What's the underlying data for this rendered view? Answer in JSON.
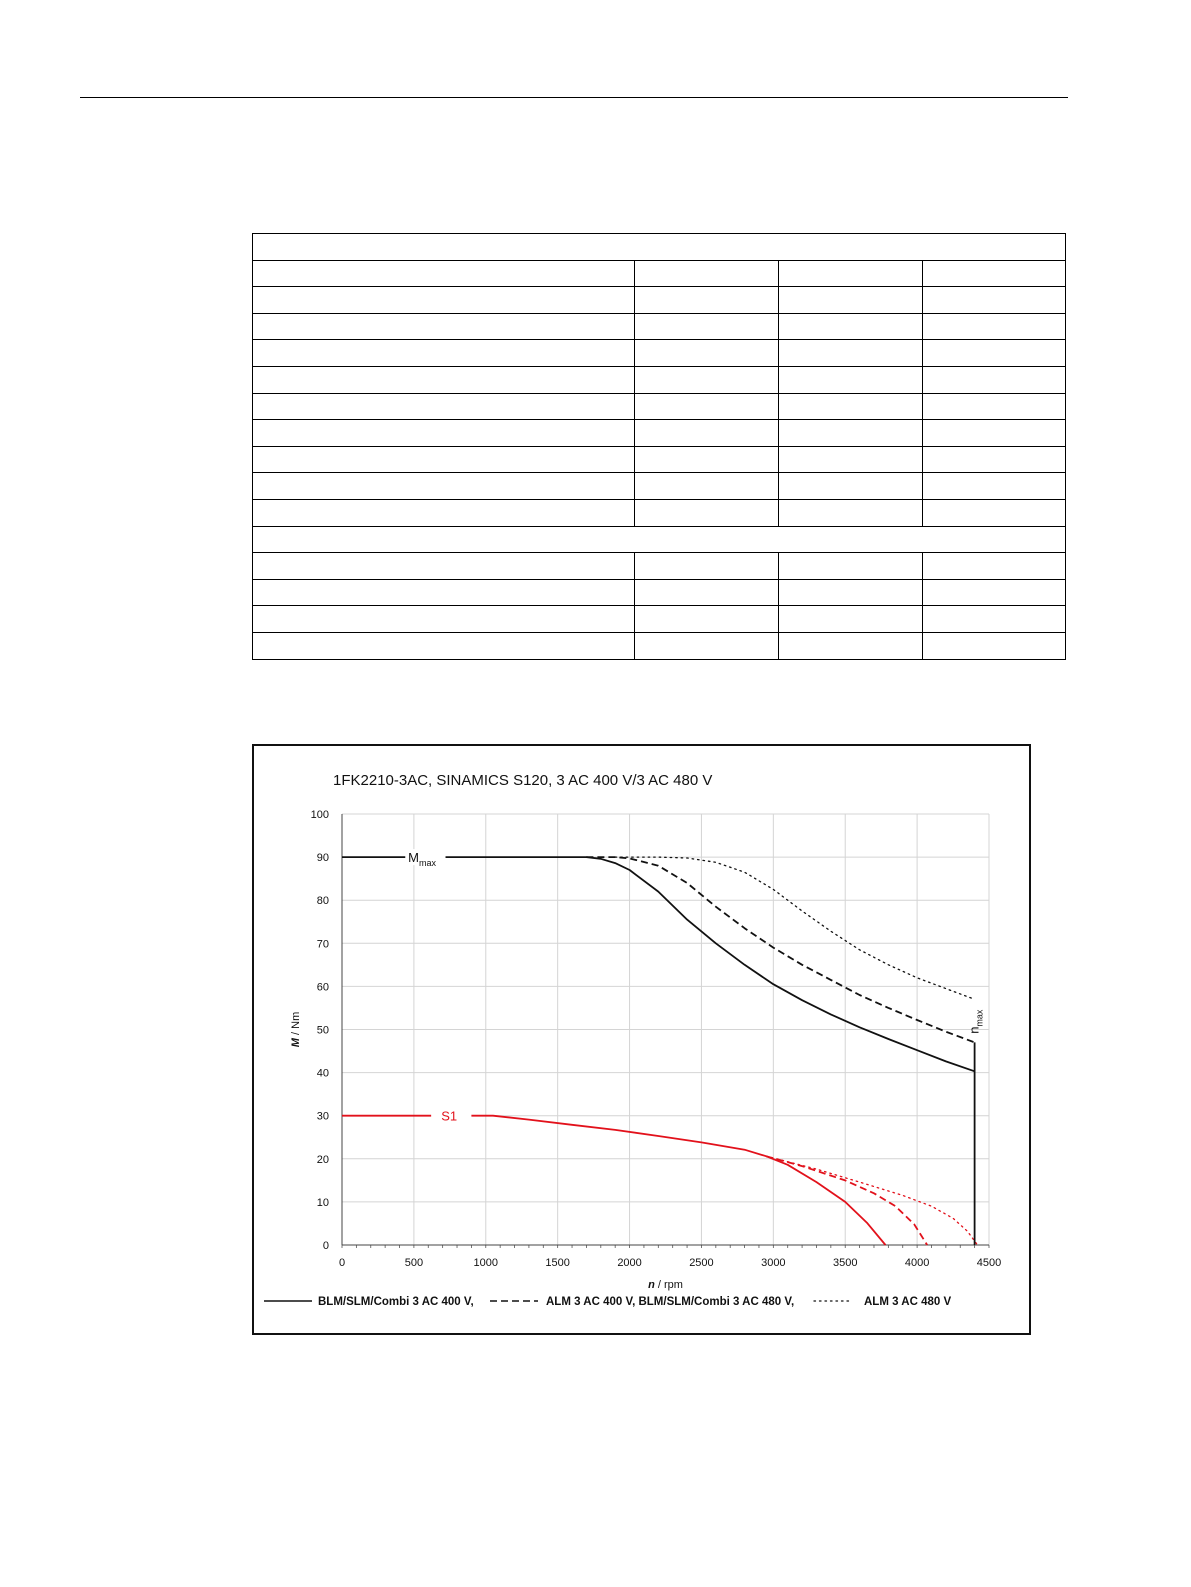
{
  "table": {
    "rows": [
      {
        "type": "header"
      },
      {
        "type": "row"
      },
      {
        "type": "row"
      },
      {
        "type": "row"
      },
      {
        "type": "row"
      },
      {
        "type": "row"
      },
      {
        "type": "row"
      },
      {
        "type": "row"
      },
      {
        "type": "row"
      },
      {
        "type": "row"
      },
      {
        "type": "row"
      },
      {
        "type": "header"
      },
      {
        "type": "row"
      },
      {
        "type": "row"
      },
      {
        "type": "row"
      },
      {
        "type": "row"
      }
    ]
  },
  "chart_data": {
    "type": "line",
    "title": "1FK2210-3AC,  SINAMICS S120,  3 AC 400 V/3 AC 480 V",
    "xlabel_italic": "n",
    "xlabel_rest": " / rpm",
    "ylabel_italic": "M",
    "ylabel_rest": " / Nm",
    "xlim": [
      0,
      4500
    ],
    "ylim": [
      0,
      100
    ],
    "xticks": [
      0,
      500,
      1000,
      1500,
      2000,
      2500,
      3000,
      3500,
      4000,
      4500
    ],
    "yticks": [
      0,
      10,
      20,
      30,
      40,
      50,
      60,
      70,
      80,
      90,
      100
    ],
    "grid": true,
    "legend_position": "bottom",
    "legend": [
      {
        "label": "BLM/SLM/Combi 3 AC 400 V,",
        "style": "solid"
      },
      {
        "label": "ALM 3 AC 400 V, BLM/SLM/Combi 3 AC 480 V,",
        "style": "dashed"
      },
      {
        "label": "ALM 3 AC 480 V",
        "style": "dotted"
      }
    ],
    "annotations": {
      "mmax_main": "M",
      "mmax_sub": "max",
      "s1": "S1",
      "nmax_main": "n",
      "nmax_sub": "max"
    },
    "colors": {
      "mmax": "#111111",
      "s1": "#e2111b",
      "grid": "#d4d4d4"
    },
    "series": [
      {
        "group": "Mmax",
        "style": "solid",
        "x": [
          0,
          1700,
          1800,
          1900,
          2000,
          2200,
          2400,
          2600,
          2800,
          3000,
          3200,
          3400,
          3600,
          3800,
          4000,
          4200,
          4400
        ],
        "y": [
          90,
          90,
          89.6,
          88.6,
          87,
          82,
          75.5,
          70,
          65,
          60.5,
          56.8,
          53.5,
          50.5,
          47.8,
          45.2,
          42.6,
          40.3
        ]
      },
      {
        "group": "Mmax",
        "style": "dashed",
        "x": [
          1700,
          1900,
          2000,
          2200,
          2400,
          2600,
          2800,
          3000,
          3200,
          3400,
          3600,
          3800,
          4000,
          4200,
          4400
        ],
        "y": [
          90,
          90,
          89.7,
          88,
          84,
          78.5,
          73.5,
          69,
          65,
          61.5,
          58,
          55,
          52.2,
          49.5,
          47
        ]
      },
      {
        "group": "Mmax",
        "style": "dotted",
        "x": [
          1900,
          2200,
          2400,
          2600,
          2800,
          3000,
          3200,
          3400,
          3600,
          3800,
          4000,
          4200,
          4400
        ],
        "y": [
          90,
          90,
          89.8,
          88.8,
          86.5,
          82.5,
          77.5,
          72.8,
          68.5,
          65,
          62,
          59.5,
          57
        ]
      },
      {
        "group": "S1",
        "style": "solid",
        "x": [
          0,
          1050,
          1300,
          1600,
          1900,
          2200,
          2500,
          2800,
          2950,
          3100,
          3300,
          3500,
          3650,
          3780
        ],
        "y": [
          30,
          30,
          29.1,
          27.9,
          26.7,
          25.3,
          23.8,
          22.1,
          20.6,
          18.6,
          14.6,
          10,
          5.2,
          0
        ]
      },
      {
        "group": "S1",
        "style": "dashed",
        "x": [
          2950,
          3200,
          3500,
          3700,
          3850,
          3980,
          4070
        ],
        "y": [
          20.6,
          18.3,
          15,
          12,
          9,
          4.8,
          0
        ]
      },
      {
        "group": "S1",
        "style": "dotted",
        "x": [
          2950,
          3300,
          3600,
          3900,
          4100,
          4250,
          4350,
          4420
        ],
        "y": [
          20.6,
          17.6,
          14.6,
          11.5,
          9,
          6.2,
          3.2,
          0
        ]
      },
      {
        "group": "nmax",
        "style": "solid",
        "x": [
          4400,
          4400
        ],
        "y": [
          0,
          47
        ]
      }
    ]
  }
}
